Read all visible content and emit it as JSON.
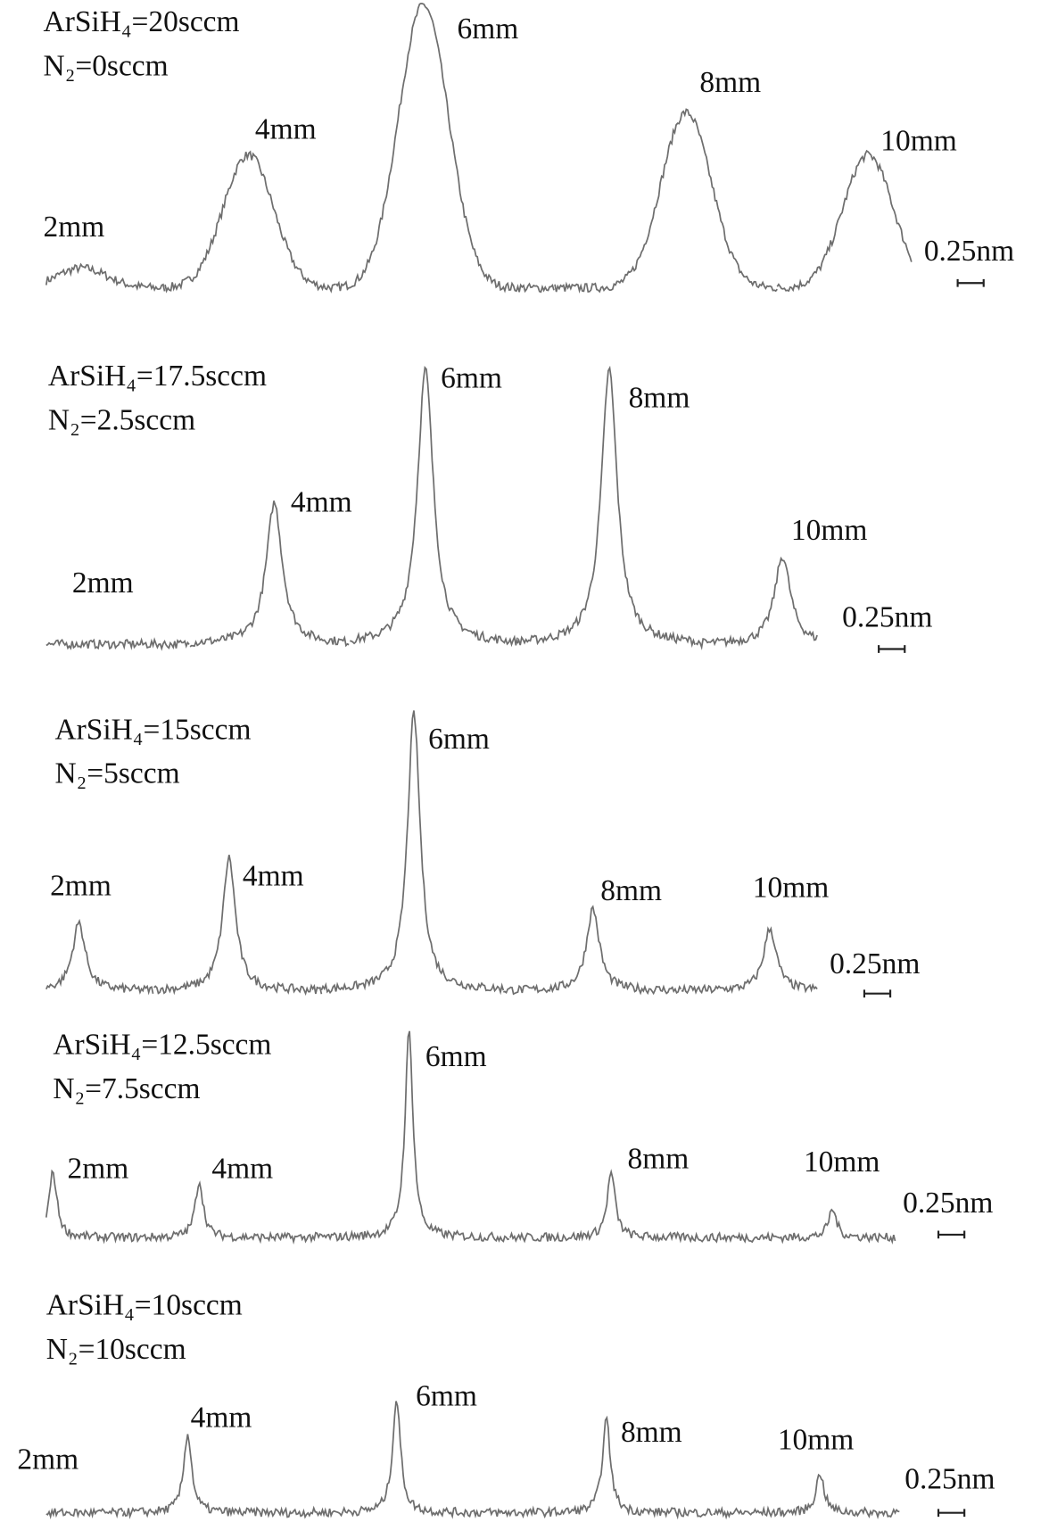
{
  "chart_data": [
    {
      "type": "line",
      "title": "ArSiH₄=20sccm",
      "subtitle": "N₂=0sccm",
      "categories": [
        "2mm",
        "4mm",
        "6mm",
        "8mm",
        "10mm"
      ],
      "values": [
        0.07,
        0.47,
        1.0,
        0.62,
        0.47
      ],
      "scale_label": "0.25nm",
      "color": "#6e6e6e"
    },
    {
      "type": "line",
      "title": "ArSiH₄=17.5sccm",
      "subtitle": "N₂=2.5sccm",
      "categories": [
        "2mm",
        "4mm",
        "6mm",
        "8mm",
        "10mm"
      ],
      "values": [
        0,
        0.5,
        0.97,
        0.97,
        0.31
      ],
      "scale_label": "0.25nm",
      "color": "#6e6e6e"
    },
    {
      "type": "line",
      "title": "ArSiH₄=15sccm",
      "subtitle": "N₂=5sccm",
      "categories": [
        "2mm",
        "4mm",
        "6mm",
        "8mm",
        "10mm"
      ],
      "values": [
        0.24,
        0.47,
        0.98,
        0.29,
        0.22
      ],
      "scale_label": "0.25nm",
      "color": "#6e6e6e"
    },
    {
      "type": "line",
      "title": "ArSiH₄=12.5sccm",
      "subtitle": "N₂=7.5sccm",
      "categories": [
        "2mm",
        "4mm",
        "6mm",
        "8mm",
        "10mm"
      ],
      "values": [
        0.23,
        0.2,
        0.73,
        0.23,
        0.1
      ],
      "scale_label": "0.25nm",
      "color": "#6e6e6e"
    },
    {
      "type": "line",
      "title": "ArSiH₄=10sccm",
      "subtitle": "N₂=10sccm",
      "categories": [
        "2mm",
        "4mm",
        "6mm",
        "8mm",
        "10mm"
      ],
      "values": [
        0,
        0.28,
        0.4,
        0.33,
        0.14
      ],
      "scale_label": "0.25nm",
      "color": "#6e6e6e"
    }
  ]
}
